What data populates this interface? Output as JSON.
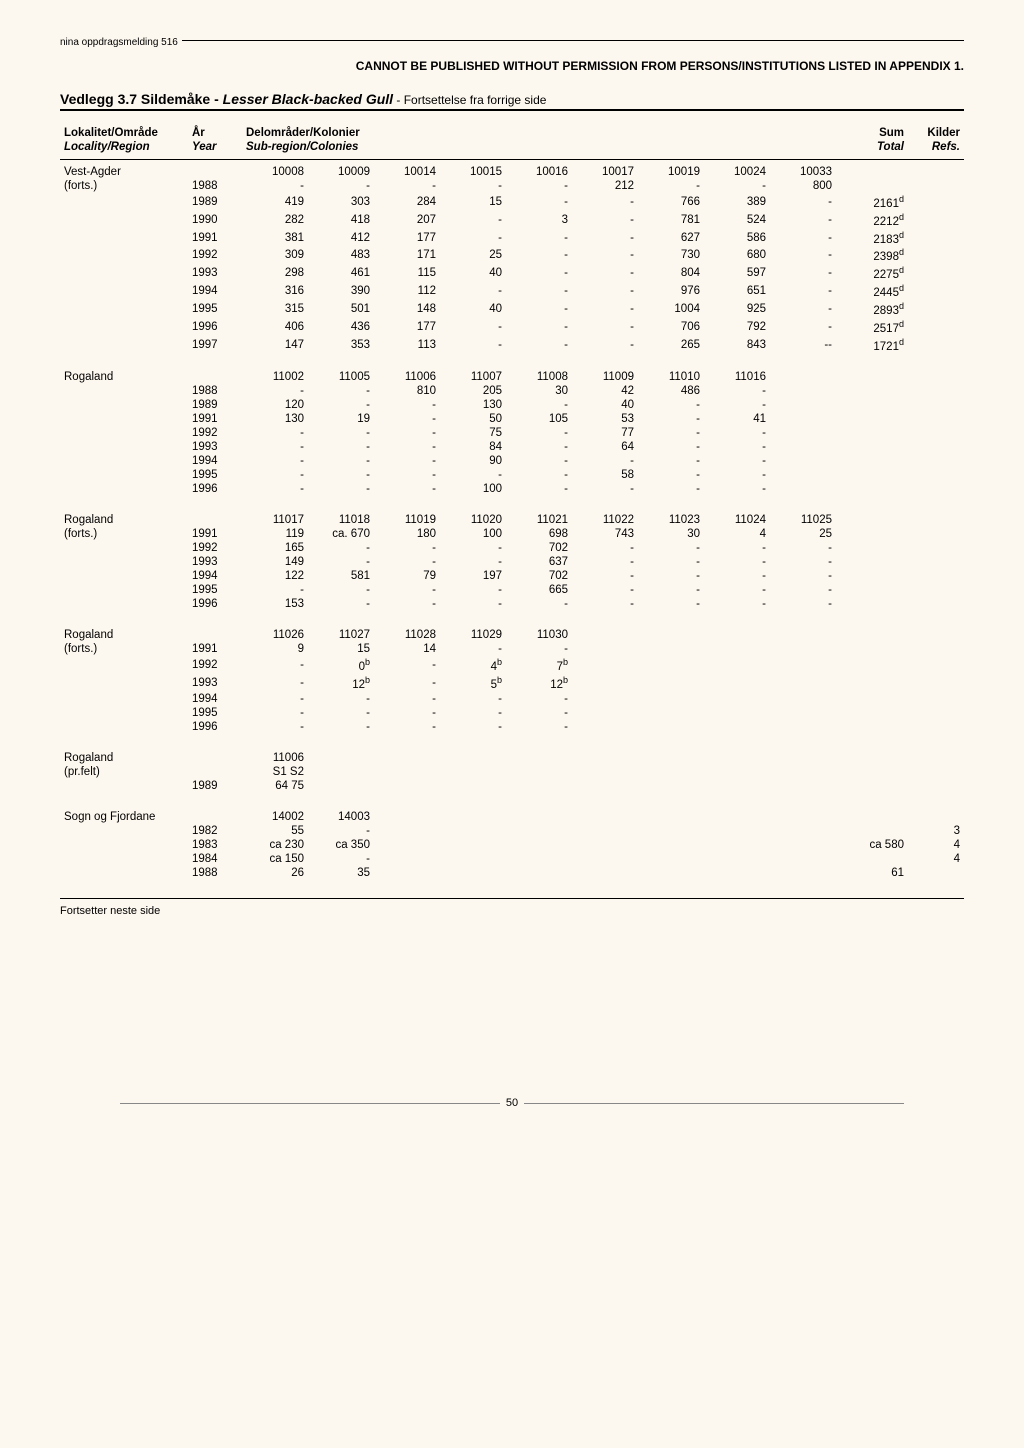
{
  "top": {
    "series": "nina oppdragsmelding 516",
    "notice": "CANNOT BE PUBLISHED WITHOUT PERMISSION FROM PERSONS/INSTITUTIONS LISTED IN APPENDIX 1."
  },
  "title": {
    "prefix": "Vedlegg 3.7 Sildemåke - ",
    "species": "Lesser Black-backed Gull",
    "cont": " - Fortsettelse fra forrige side"
  },
  "headers": {
    "no": [
      "Lokalitet/Område",
      "År",
      "Delområder/Kolonier",
      "",
      "",
      "",
      "",
      "",
      "",
      "",
      "",
      "Sum",
      "Kilder"
    ],
    "en": [
      "Locality/Region",
      "Year",
      "Sub-region/Colonies",
      "",
      "",
      "",
      "",
      "",
      "",
      "",
      "",
      "Total",
      "Refs."
    ]
  },
  "blocks": [
    {
      "codes": [
        "",
        "",
        "10008",
        "10009",
        "10014",
        "10015",
        "10016",
        "10017",
        "10019",
        "10024",
        "10033",
        "",
        ""
      ],
      "label": "Vest-Agder",
      "sublabel": "(forts.)",
      "rows": [
        [
          "",
          "1988",
          "-",
          "-",
          "-",
          "-",
          "-",
          "212",
          "-",
          "-",
          "800",
          "",
          ""
        ],
        [
          "",
          "1989",
          "419",
          "303",
          "284",
          "15",
          "-",
          "-",
          "766",
          "389",
          "-",
          "2161ᵈ",
          ""
        ],
        [
          "",
          "1990",
          "282",
          "418",
          "207",
          "-",
          "3",
          "-",
          "781",
          "524",
          "-",
          "2212ᵈ",
          ""
        ],
        [
          "",
          "1991",
          "381",
          "412",
          "177",
          "-",
          "-",
          "-",
          "627",
          "586",
          "-",
          "2183ᵈ",
          ""
        ],
        [
          "",
          "1992",
          "309",
          "483",
          "171",
          "25",
          "-",
          "-",
          "730",
          "680",
          "-",
          "2398ᵈ",
          ""
        ],
        [
          "",
          "1993",
          "298",
          "461",
          "115",
          "40",
          "-",
          "-",
          "804",
          "597",
          "-",
          "2275ᵈ",
          ""
        ],
        [
          "",
          "1994",
          "316",
          "390",
          "112",
          "-",
          "-",
          "-",
          "976",
          "651",
          "-",
          "2445ᵈ",
          ""
        ],
        [
          "",
          "1995",
          "315",
          "501",
          "148",
          "40",
          "-",
          "-",
          "1004",
          "925",
          "-",
          "2893ᵈ",
          ""
        ],
        [
          "",
          "1996",
          "406",
          "436",
          "177",
          "-",
          "-",
          "-",
          "706",
          "792",
          "-",
          "2517ᵈ",
          ""
        ],
        [
          "",
          "1997",
          "147",
          "353",
          "113",
          "-",
          "-",
          "-",
          "265",
          "843",
          "--",
          "1721ᵈ",
          ""
        ]
      ]
    },
    {
      "codes": [
        "",
        "",
        "11002",
        "11005",
        "11006",
        "11007",
        "11008",
        "11009",
        "11010",
        "11016",
        "",
        "",
        ""
      ],
      "label": "Rogaland",
      "sublabel": "",
      "rows": [
        [
          "",
          "1988",
          "-",
          "-",
          "810",
          "205",
          "30",
          "42",
          "486",
          "-",
          "",
          "",
          ""
        ],
        [
          "",
          "1989",
          "120",
          "-",
          "-",
          "130",
          "-",
          "40",
          "-",
          "-",
          "",
          "",
          ""
        ],
        [
          "",
          "1991",
          "130",
          "19",
          "-",
          "50",
          "105",
          "53",
          "-",
          "41",
          "",
          "",
          ""
        ],
        [
          "",
          "1992",
          "-",
          "-",
          "-",
          "75",
          "-",
          "77",
          "-",
          "-",
          "",
          "",
          ""
        ],
        [
          "",
          "1993",
          "-",
          "-",
          "-",
          "84",
          "-",
          "64",
          "-",
          "-",
          "",
          "",
          ""
        ],
        [
          "",
          "1994",
          "-",
          "-",
          "-",
          "90",
          "-",
          "-",
          "-",
          "-",
          "",
          "",
          ""
        ],
        [
          "",
          "1995",
          "-",
          "-",
          "-",
          "-",
          "-",
          "58",
          "-",
          "-",
          "",
          "",
          ""
        ],
        [
          "",
          "1996",
          "-",
          "-",
          "-",
          "100",
          "-",
          "-",
          "-",
          "-",
          "",
          "",
          ""
        ]
      ]
    },
    {
      "codes": [
        "",
        "",
        "11017",
        "11018",
        "11019",
        "11020",
        "11021",
        "11022",
        "11023",
        "11024",
        "11025",
        "",
        ""
      ],
      "label": "Rogaland",
      "sublabel": "(forts.)",
      "rows": [
        [
          "",
          "1991",
          "119",
          "ca. 670",
          "180",
          "100",
          "698",
          "743",
          "30",
          "4",
          "25",
          "",
          ""
        ],
        [
          "",
          "1992",
          "165",
          "-",
          "-",
          "-",
          "702",
          "-",
          "-",
          "-",
          "-",
          "",
          ""
        ],
        [
          "",
          "1993",
          "149",
          "-",
          "-",
          "-",
          "637",
          "-",
          "-",
          "-",
          "-",
          "",
          ""
        ],
        [
          "",
          "1994",
          "122",
          "581",
          "79",
          "197",
          "702",
          "-",
          "-",
          "-",
          "-",
          "",
          ""
        ],
        [
          "",
          "1995",
          "-",
          "-",
          "-",
          "-",
          "665",
          "-",
          "-",
          "-",
          "-",
          "",
          ""
        ],
        [
          "",
          "1996",
          "153",
          "-",
          "-",
          "-",
          "-",
          "-",
          "-",
          "-",
          "-",
          "",
          ""
        ]
      ]
    },
    {
      "codes": [
        "",
        "",
        "11026",
        "11027",
        "11028",
        "11029",
        "11030",
        "",
        "",
        "",
        "",
        "",
        ""
      ],
      "label": "Rogaland",
      "sublabel": "(forts.)",
      "rows": [
        [
          "",
          "1991",
          "9",
          "15",
          "14",
          "-",
          "-",
          "",
          "",
          "",
          "",
          "",
          ""
        ],
        [
          "",
          "1992",
          "-",
          "0ᵇ",
          "-",
          "4ᵇ",
          "7ᵇ",
          "",
          "",
          "",
          "",
          "",
          ""
        ],
        [
          "",
          "1993",
          "-",
          "12ᵇ",
          "-",
          "5ᵇ",
          "12ᵇ",
          "",
          "",
          "",
          "",
          "",
          ""
        ],
        [
          "",
          "1994",
          "-",
          "-",
          "-",
          "-",
          "-",
          "",
          "",
          "",
          "",
          "",
          ""
        ],
        [
          "",
          "1995",
          "-",
          "-",
          "-",
          "-",
          "-",
          "",
          "",
          "",
          "",
          "",
          ""
        ],
        [
          "",
          "1996",
          "-",
          "-",
          "-",
          "-",
          "-",
          "",
          "",
          "",
          "",
          "",
          ""
        ]
      ]
    },
    {
      "codes": [
        "",
        "",
        "11006",
        "",
        "",
        "",
        "",
        "",
        "",
        "",
        "",
        "",
        ""
      ],
      "label": "Rogaland",
      "sublabel": "(pr.felt)",
      "rows": [
        [
          "",
          "",
          "S1   S2",
          "",
          "",
          "",
          "",
          "",
          "",
          "",
          "",
          "",
          ""
        ],
        [
          "",
          "1989",
          "64   75",
          "",
          "",
          "",
          "",
          "",
          "",
          "",
          "",
          "",
          ""
        ]
      ]
    },
    {
      "codes": [
        "",
        "",
        "14002",
        "14003",
        "",
        "",
        "",
        "",
        "",
        "",
        "",
        "",
        ""
      ],
      "label": "Sogn og Fjordane",
      "sublabel": "",
      "rows": [
        [
          "",
          "1982",
          "55",
          "-",
          "",
          "",
          "",
          "",
          "",
          "",
          "",
          "",
          "3"
        ],
        [
          "",
          "1983",
          "ca 230",
          "ca 350",
          "",
          "",
          "",
          "",
          "",
          "",
          "",
          "ca 580",
          "4"
        ],
        [
          "",
          "1984",
          "ca 150",
          "-",
          "",
          "",
          "",
          "",
          "",
          "",
          "",
          "",
          "4"
        ],
        [
          "",
          "1988",
          "26",
          "35",
          "",
          "",
          "",
          "",
          "",
          "",
          "",
          "61",
          ""
        ]
      ]
    }
  ],
  "footer": {
    "cont": "Fortsetter neste side",
    "page": "50"
  }
}
